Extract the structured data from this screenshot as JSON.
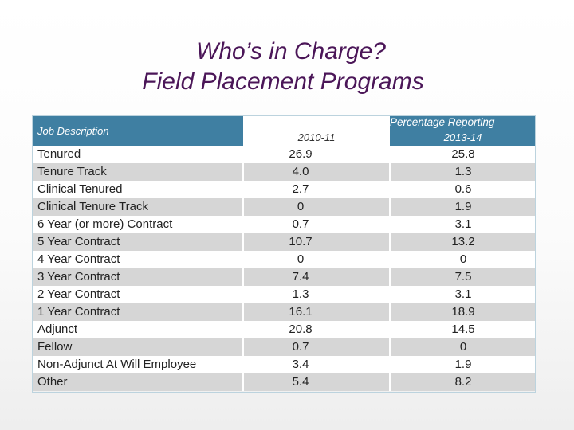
{
  "title": {
    "line1": "Who’s in Charge?",
    "line2": "Field Placement Programs"
  },
  "table": {
    "header": {
      "job_description": "Job Description",
      "group_label": "Percentage Reporting",
      "year1": "2010-11",
      "year2": "2013-14"
    },
    "rows": [
      {
        "desc": "Tenured",
        "y1": "26.9",
        "y2": "25.8"
      },
      {
        "desc": "Tenure Track",
        "y1": "4.0",
        "y2": "1.3"
      },
      {
        "desc": "Clinical Tenured",
        "y1": "2.7",
        "y2": "0.6"
      },
      {
        "desc": "Clinical Tenure Track",
        "y1": "0",
        "y2": "1.9"
      },
      {
        "desc": "6 Year (or more) Contract",
        "y1": "0.7",
        "y2": "3.1"
      },
      {
        "desc": "5 Year Contract",
        "y1": "10.7",
        "y2": "13.2"
      },
      {
        "desc": "4 Year Contract",
        "y1": "0",
        "y2": "0"
      },
      {
        "desc": "3 Year Contract",
        "y1": "7.4",
        "y2": "7.5"
      },
      {
        "desc": "2 Year Contract",
        "y1": "1.3",
        "y2": "3.1"
      },
      {
        "desc": "1 Year Contract",
        "y1": "16.1",
        "y2": "18.9"
      },
      {
        "desc": "Adjunct",
        "y1": "20.8",
        "y2": "14.5"
      },
      {
        "desc": "Fellow",
        "y1": "0.7",
        "y2": "0"
      },
      {
        "desc": "Non-Adjunct At Will Employee",
        "y1": "3.4",
        "y2": "1.9"
      },
      {
        "desc": "Other",
        "y1": "5.4",
        "y2": "8.2"
      }
    ]
  },
  "colors": {
    "title": "#4b1658",
    "header_bg": "#3f7fa2",
    "row_alt": "#d6d6d6"
  }
}
